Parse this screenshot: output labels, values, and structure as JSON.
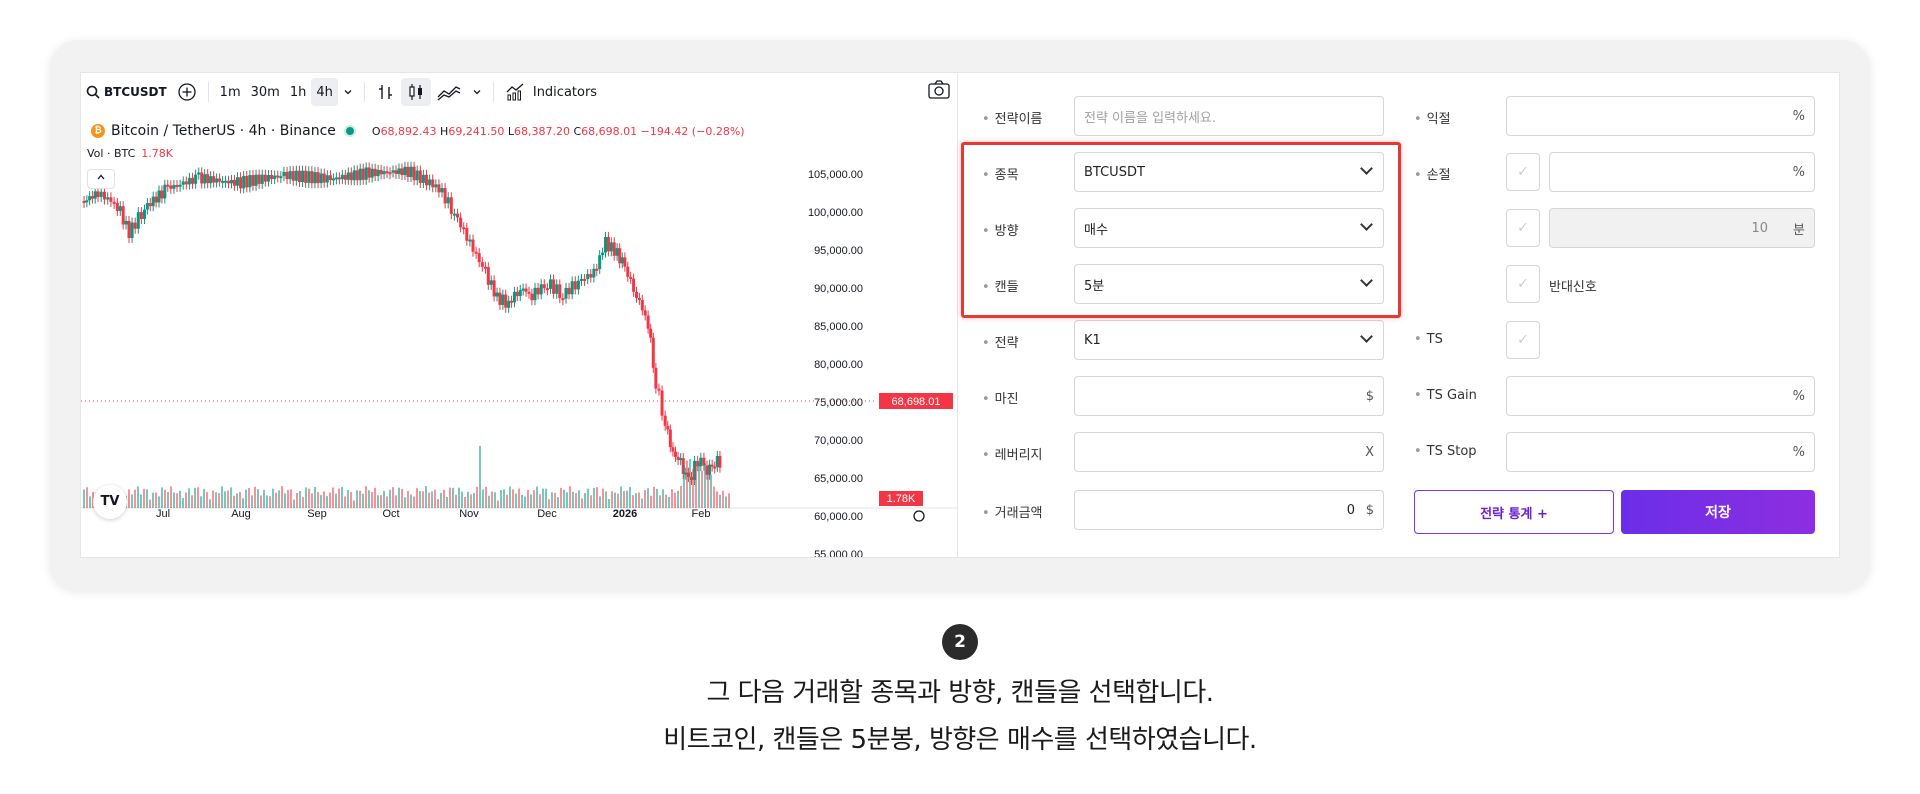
{
  "chart": {
    "toolbar": {
      "symbol": "BTCUSDT",
      "intervals": [
        "1m",
        "30m",
        "1h",
        "4h"
      ],
      "active_interval": "4h",
      "indicators_label": "Indicators"
    },
    "legend": {
      "title": "Bitcoin / TetherUS · 4h · Binance",
      "open_label": "O",
      "open": "68,892.43",
      "high_label": "H",
      "high": "69,241.50",
      "low_label": "L",
      "low": "68,387.20",
      "close_label": "C",
      "close": "68,698.01",
      "change": "−194.42 (−0.28%)"
    },
    "volume": {
      "label": "Vol · BTC",
      "value": "1.78K"
    },
    "price_axis": [
      "105,000.00",
      "100,000.00",
      "95,000.00",
      "90,000.00",
      "85,000.00",
      "80,000.00",
      "75,000.00",
      "70,000.00",
      "65,000.00",
      "60,000.00",
      "55,000.00"
    ],
    "current_price_tag": "68,698.01",
    "current_volume_tag": "1.78K",
    "time_axis": [
      "Jul",
      "Aug",
      "Sep",
      "Oct",
      "Nov",
      "Dec",
      "2026",
      "Feb"
    ],
    "logo_text": "TV",
    "colors": {
      "up": "#089981",
      "down": "#f23645"
    }
  },
  "form": {
    "strategy_name": {
      "label": "전략이름",
      "placeholder": "전략 이름을 입력하세요."
    },
    "symbol": {
      "label": "종목",
      "value": "BTCUSDT"
    },
    "direction": {
      "label": "방향",
      "value": "매수"
    },
    "candle": {
      "label": "캔들",
      "value": "5분"
    },
    "strategy": {
      "label": "전략",
      "value": "K1"
    },
    "margin": {
      "label": "마진",
      "unit": "$"
    },
    "leverage": {
      "label": "레버리지",
      "unit": "X"
    },
    "trade_amount": {
      "label": "거래금액",
      "value": "0",
      "unit": "$"
    },
    "take_profit": {
      "label": "익절",
      "unit": "%"
    },
    "stop_loss": {
      "label": "손절",
      "unit": "%"
    },
    "stop_minutes": {
      "value": "10",
      "unit": "분"
    },
    "reverse_signal": {
      "label": "반대신호"
    },
    "ts": {
      "label": "TS"
    },
    "ts_gain": {
      "label": "TS Gain",
      "unit": "%"
    },
    "ts_stop": {
      "label": "TS Stop",
      "unit": "%"
    },
    "stats_button": "전략 통계 +",
    "save_button": "저장",
    "accent": "#7b2ff7"
  },
  "step": {
    "number": "2",
    "line1": "그 다음 거래할 종목과 방향, 캔들을 선택합니다.",
    "line2": "비트코인, 캔들은 5분봉, 방향은 매수를 선택하였습니다."
  }
}
